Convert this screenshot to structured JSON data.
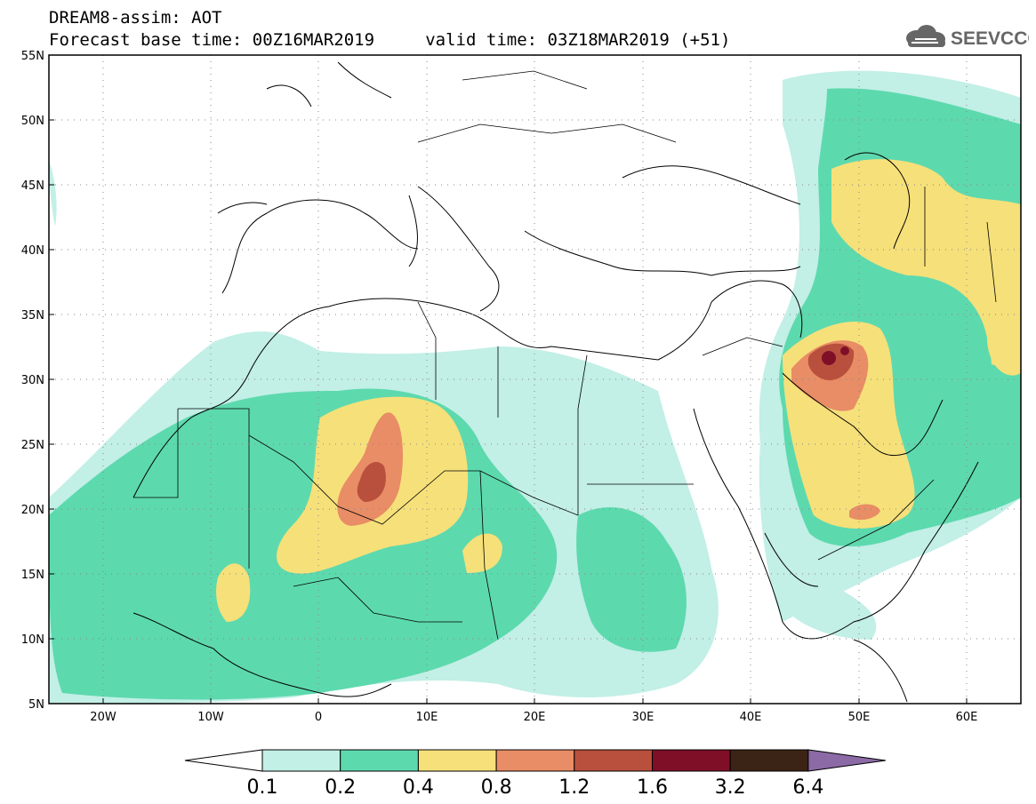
{
  "header": {
    "title": "DREAM8-assim: AOT",
    "subtitle": "Forecast base time: 00Z16MAR2019     valid time: 03Z18MAR2019 (+51)",
    "logo_text": "SEEVCCC"
  },
  "map": {
    "lat_labels": [
      "55N",
      "50N",
      "45N",
      "40N",
      "35N",
      "30N",
      "25N",
      "20N",
      "15N",
      "10N",
      "5N"
    ],
    "lon_labels": [
      "20W",
      "10W",
      "0",
      "10E",
      "20E",
      "30E",
      "40E",
      "50E",
      "60E"
    ],
    "extent": {
      "lon_min": -25,
      "lon_max": 65,
      "lat_min": 5,
      "lat_max": 55
    }
  },
  "colorbar": {
    "thresholds": [
      "0.1",
      "0.2",
      "0.4",
      "0.8",
      "1.2",
      "1.6",
      "3.2",
      "6.4"
    ],
    "colors": [
      "#ffffff",
      "#c2efe6",
      "#5dd9ae",
      "#f6e07a",
      "#e88d65",
      "#b9503d",
      "#7e0f27",
      "#3b2415",
      "#8c6aa6"
    ]
  },
  "colors": {
    "aot_0_1": "#c2efe6",
    "aot_0_2": "#5dd9ae",
    "aot_0_4": "#f6e07a",
    "aot_0_8": "#e88d65",
    "aot_1_2": "#b9503d",
    "aot_1_6": "#7e0f27"
  }
}
